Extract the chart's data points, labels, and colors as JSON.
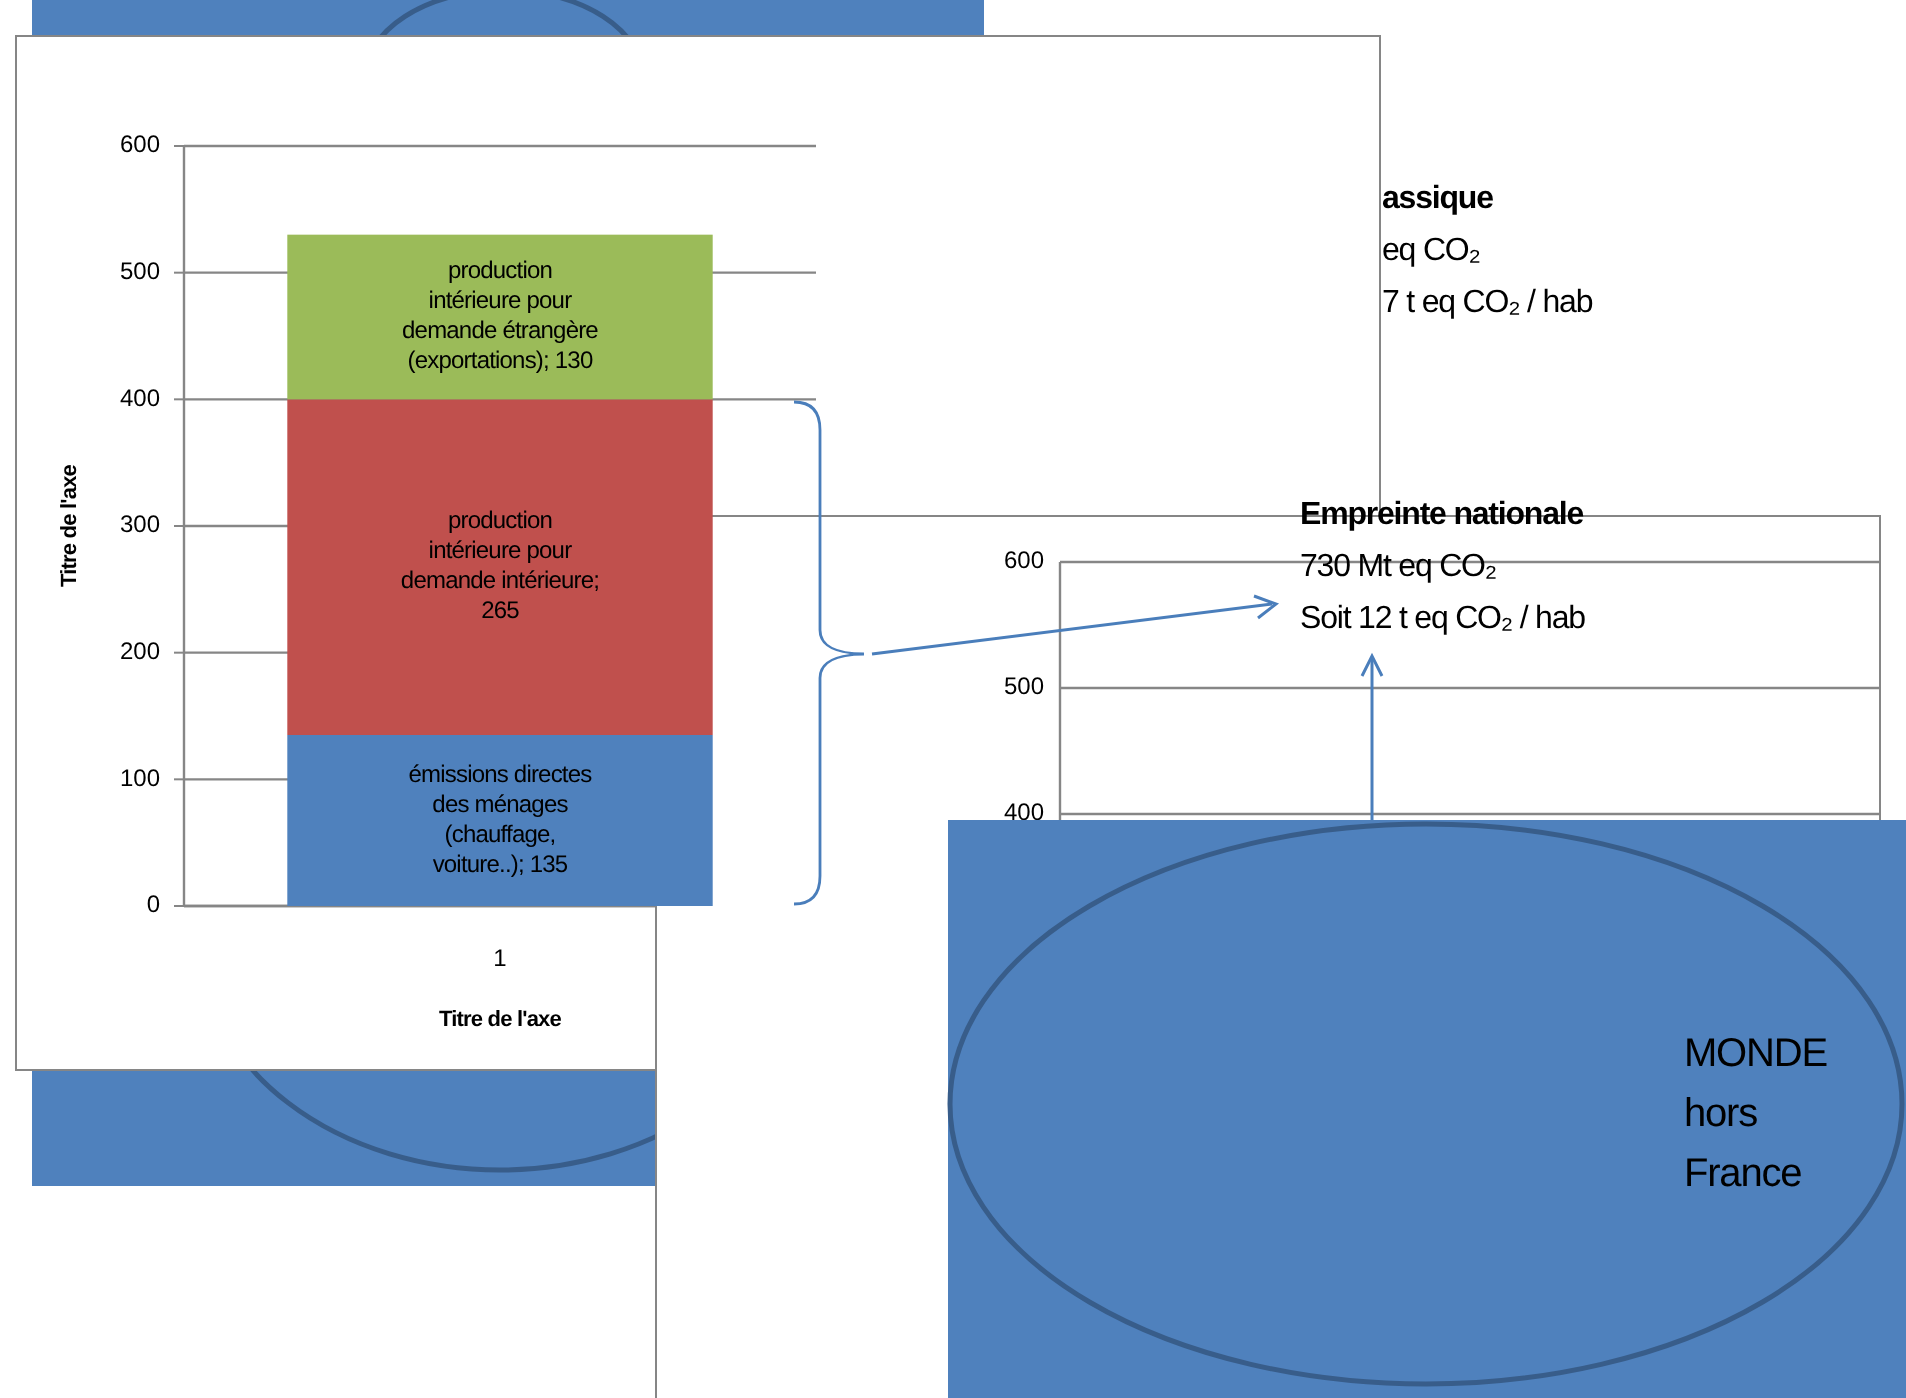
{
  "chart_data": [
    {
      "type": "bar",
      "stacked": true,
      "xlabel": "Titre de l'axe",
      "ylabel": "Titre de l'axe",
      "categories": [
        "1"
      ],
      "ylim": [
        0,
        600
      ],
      "yticks": [
        0,
        100,
        200,
        300,
        400,
        500,
        600
      ],
      "grid": "y",
      "series": [
        {
          "color": "#4f81bd",
          "values": [
            135
          ],
          "value_labels": [
            "émissions directes des ménages (chauffage, voiture..); 135"
          ]
        },
        {
          "color": "#c0504d",
          "values": [
            265
          ],
          "value_labels": [
            "production intérieure pour demande intérieure; 265"
          ]
        },
        {
          "color": "#9bbb59",
          "values": [
            130
          ],
          "value_labels": [
            "production intérieure pour demande étrangère (exportations); 130"
          ]
        }
      ]
    },
    {
      "type": "other",
      "title": "Empreinte nationale",
      "annotations": [
        "assique",
        "eq CO₂",
        "7 t eq CO₂ / hab",
        "730 Mt eq CO₂",
        "Soit  12 t eq CO₂ / hab",
        "MONDE hors France",
        "600",
        "500",
        "400"
      ]
    }
  ]
}
